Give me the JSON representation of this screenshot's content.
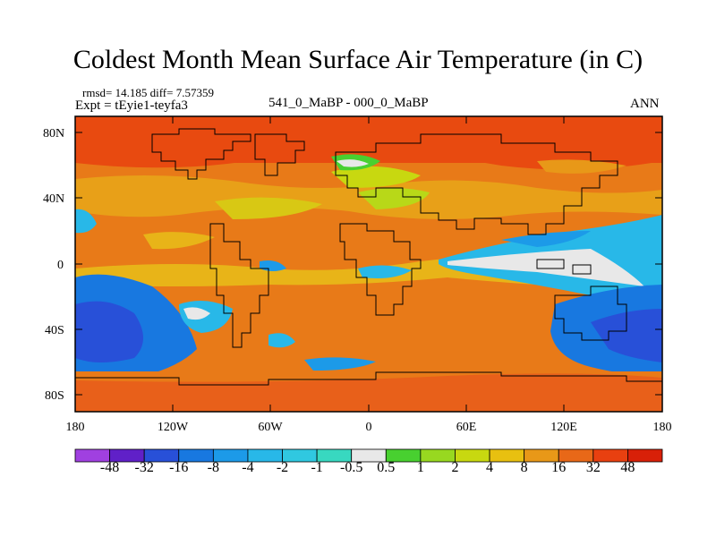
{
  "title": "Coldest Month Mean Surface Air Temperature (in C)",
  "stats_line": "rmsd= 14.185 diff= 7.57359",
  "expt_line": "Expt = tEyie1-teyfa3",
  "center_label": "541_0_MaBP - 000_0_MaBP",
  "season_label": "ANN",
  "lat_ticks": [
    "80N",
    "40N",
    "0",
    "40S",
    "80S"
  ],
  "lon_ticks": [
    "180",
    "120W",
    "60W",
    "0",
    "60E",
    "120E",
    "180"
  ],
  "colorbar": {
    "labels": [
      "-48",
      "-32",
      "-16",
      "-8",
      "-4",
      "-2",
      "-1",
      "-0.5",
      "0.5",
      "1",
      "2",
      "4",
      "8",
      "16",
      "32",
      "48"
    ],
    "colors": [
      "#a040e0",
      "#6020c8",
      "#2850d8",
      "#1878e0",
      "#1c9ae8",
      "#28b8e8",
      "#30c8e0",
      "#38d8c0",
      "#e8e8e8",
      "#48d030",
      "#98d820",
      "#c8d810",
      "#e8c010",
      "#e89818",
      "#e86818",
      "#e84010",
      "#d82008"
    ]
  },
  "colors": {
    "frame": "#000000",
    "background_field": "#e8801c"
  }
}
